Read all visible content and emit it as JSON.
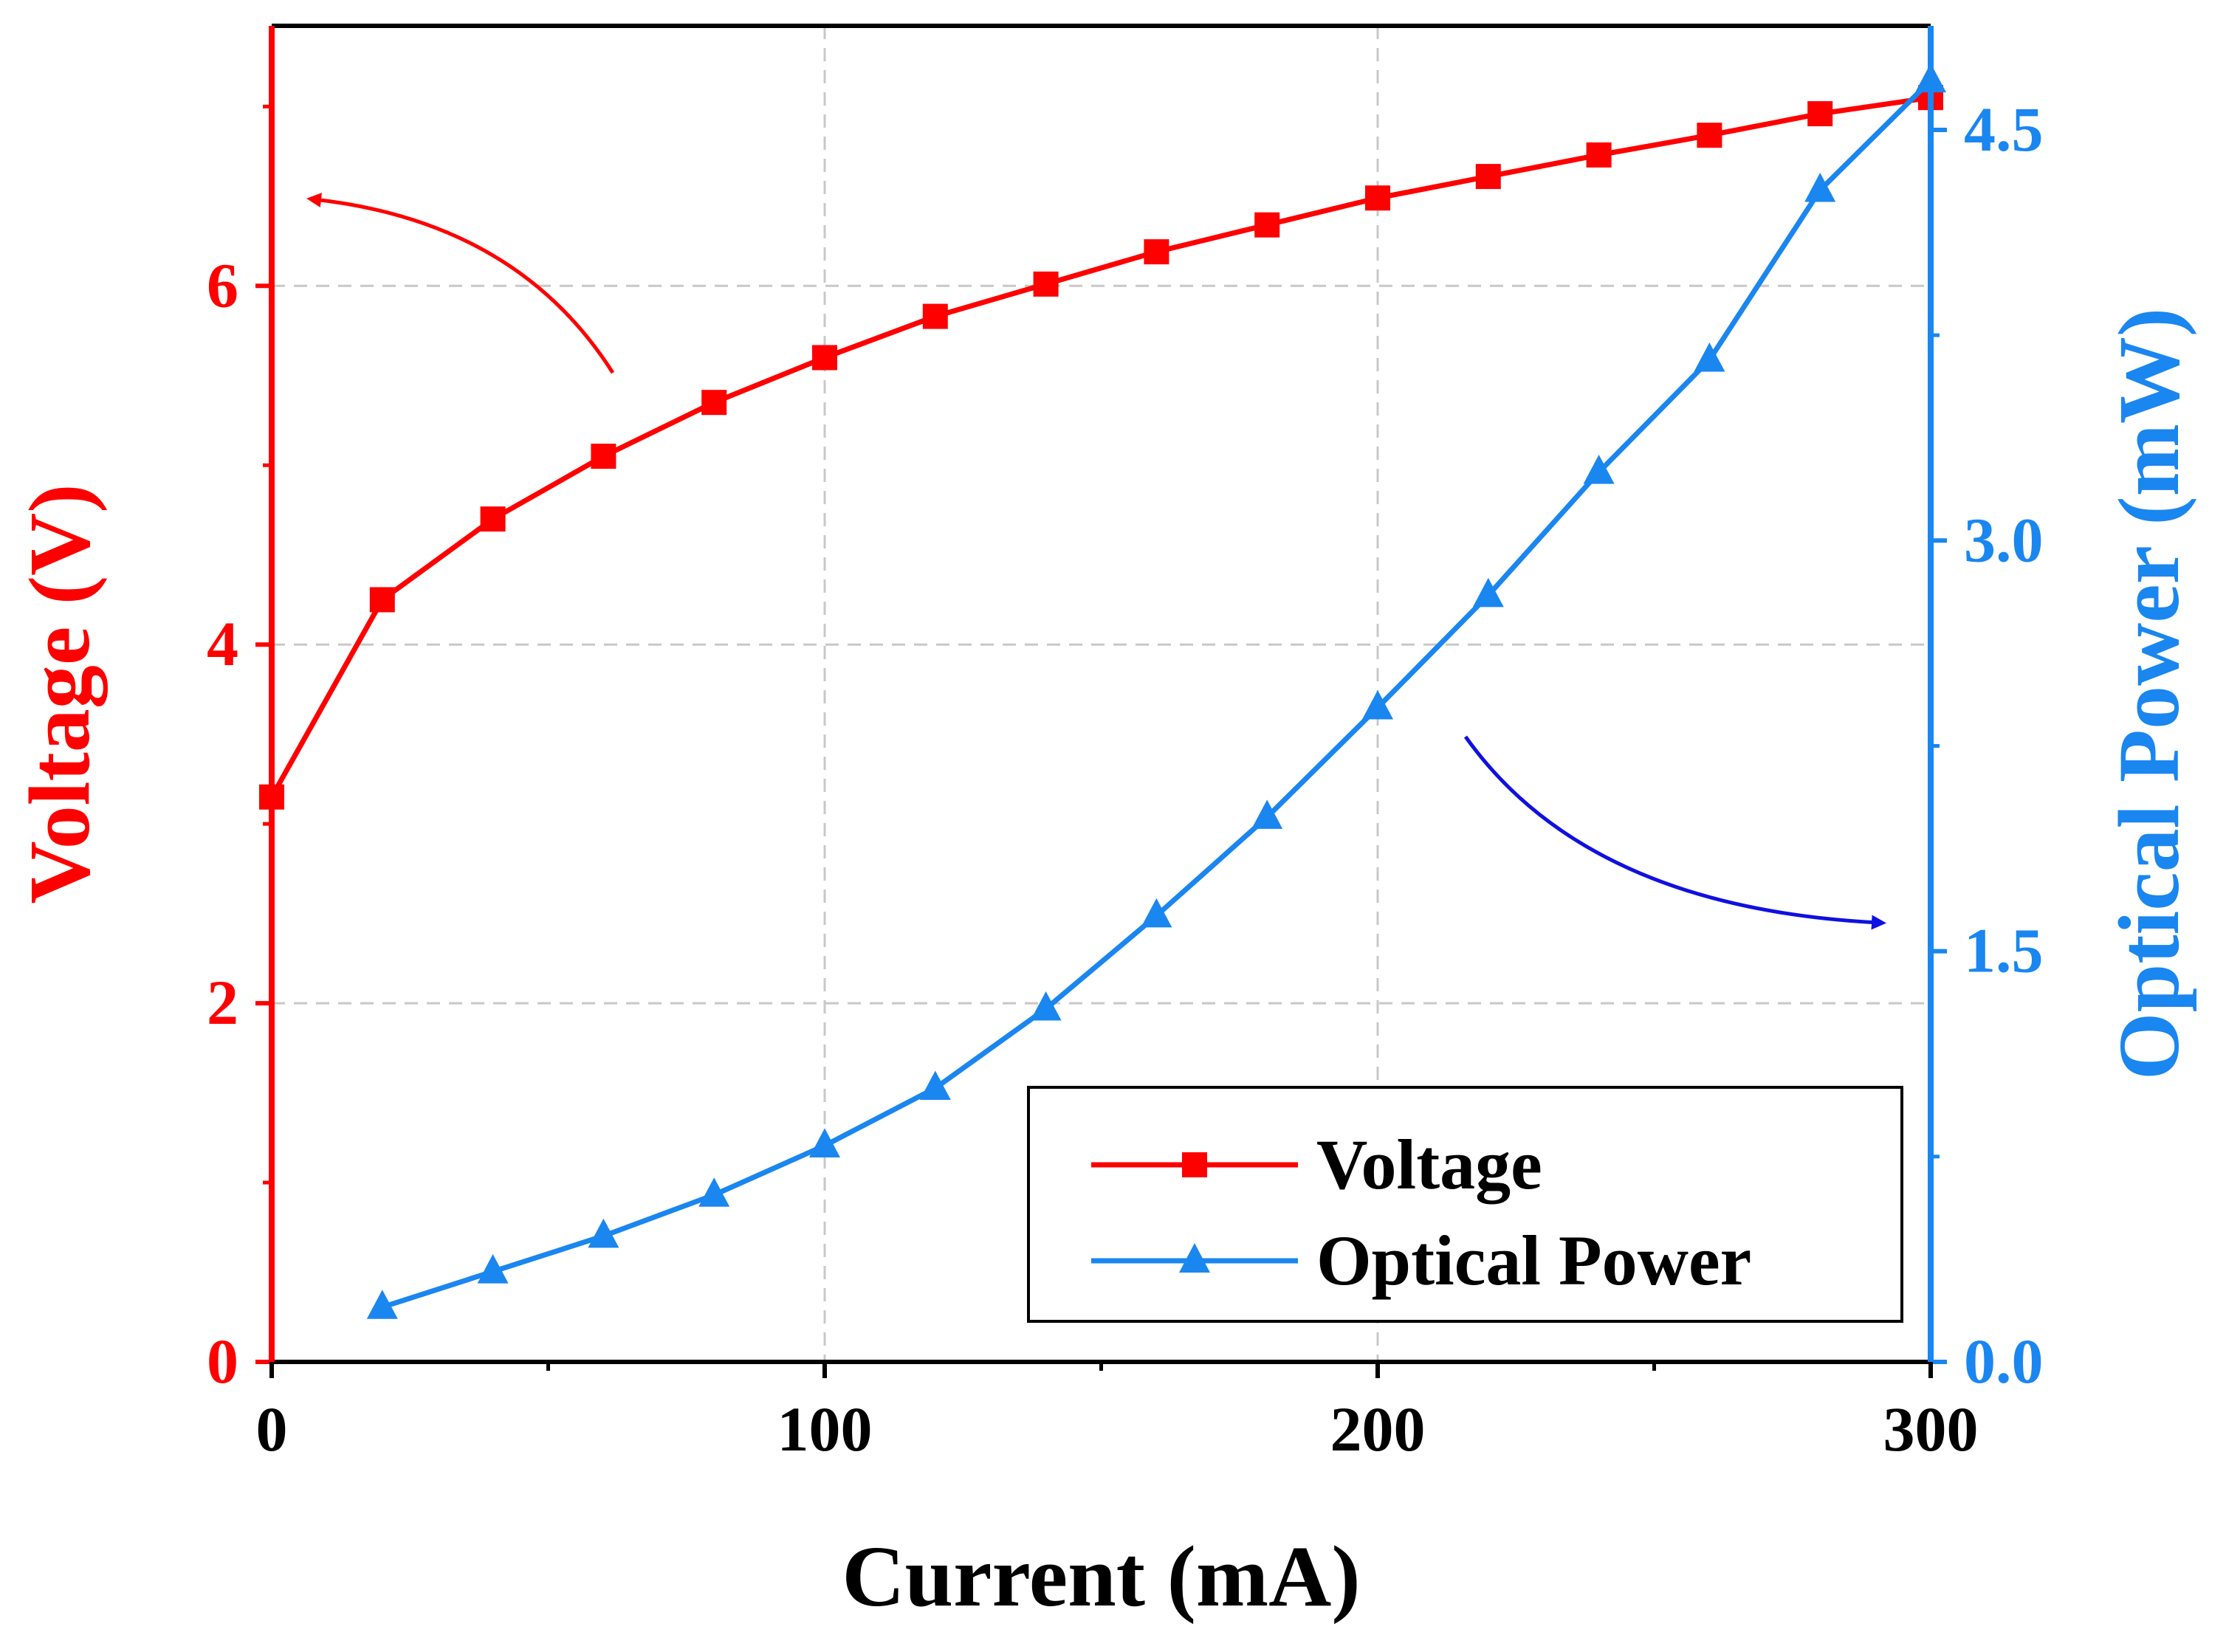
{
  "chart_data": {
    "type": "line",
    "title": "",
    "xlabel": "Current (mA)",
    "xlim": [
      0,
      300
    ],
    "x_ticks": [
      0,
      100,
      200,
      300
    ],
    "x_tick_labels": [
      "0",
      "100",
      "200",
      "300"
    ],
    "grid": true,
    "legend_position": "bottom-right",
    "y_left": {
      "label": "Voltage (V)",
      "lim": [
        0,
        7.45
      ],
      "ticks": [
        0,
        2,
        4,
        6
      ],
      "tick_labels": [
        "0",
        "2",
        "4",
        "6"
      ],
      "color": "#ff0000"
    },
    "y_right": {
      "label": "Optical Power (mW)",
      "lim": [
        0,
        4.88
      ],
      "ticks": [
        0,
        1.5,
        3,
        4.5
      ],
      "tick_labels": [
        "0.0",
        "1.5",
        "3.0",
        "4.5"
      ],
      "color": "#1a86f0"
    },
    "series": [
      {
        "name": "Voltage",
        "axis": "left",
        "color": "#ff0000",
        "marker": "square",
        "x": [
          0,
          20,
          40,
          60,
          80,
          100,
          120,
          140,
          160,
          180,
          200,
          220,
          240,
          260,
          280,
          300
        ],
        "y": [
          3.15,
          4.25,
          4.7,
          5.05,
          5.35,
          5.6,
          5.83,
          6.01,
          6.19,
          6.34,
          6.49,
          6.61,
          6.73,
          6.84,
          6.96,
          7.05
        ]
      },
      {
        "name": "Optical Power",
        "axis": "right",
        "color": "#1a86f0",
        "marker": "triangle",
        "x": [
          20,
          40,
          60,
          80,
          100,
          120,
          140,
          160,
          180,
          200,
          220,
          240,
          260,
          280,
          300
        ],
        "y": [
          0.2,
          0.33,
          0.46,
          0.61,
          0.79,
          1.0,
          1.29,
          1.63,
          1.99,
          2.39,
          2.8,
          3.25,
          3.66,
          4.28,
          4.68
        ]
      }
    ]
  }
}
